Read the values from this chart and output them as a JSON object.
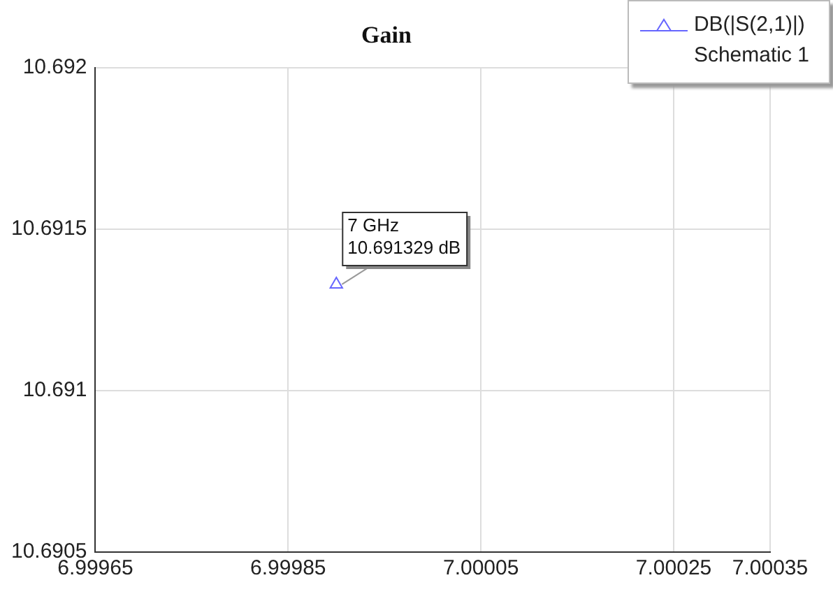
{
  "chart_data": {
    "type": "scatter",
    "title": "Gain",
    "legend_title": "Schematic 1",
    "series": [
      {
        "name": "DB(|S(2,1)|)",
        "color": "#6666ff",
        "x": [
          6.9999
        ],
        "values": [
          10.691329
        ]
      }
    ],
    "xlim": [
      6.99965,
      7.00035
    ],
    "xticks": [
      6.99965,
      6.99985,
      7.00005,
      7.00025,
      7.00035
    ],
    "ylim": [
      10.6905,
      10.692
    ],
    "yticks": [
      10.6905,
      10.691,
      10.6915,
      10.692
    ],
    "annotations": [
      {
        "text": "7 GHz\n10.691329 dB",
        "x": 6.9999,
        "y": 10.691329
      }
    ],
    "grid": true,
    "legend": "top right",
    "marker": "triangle"
  }
}
